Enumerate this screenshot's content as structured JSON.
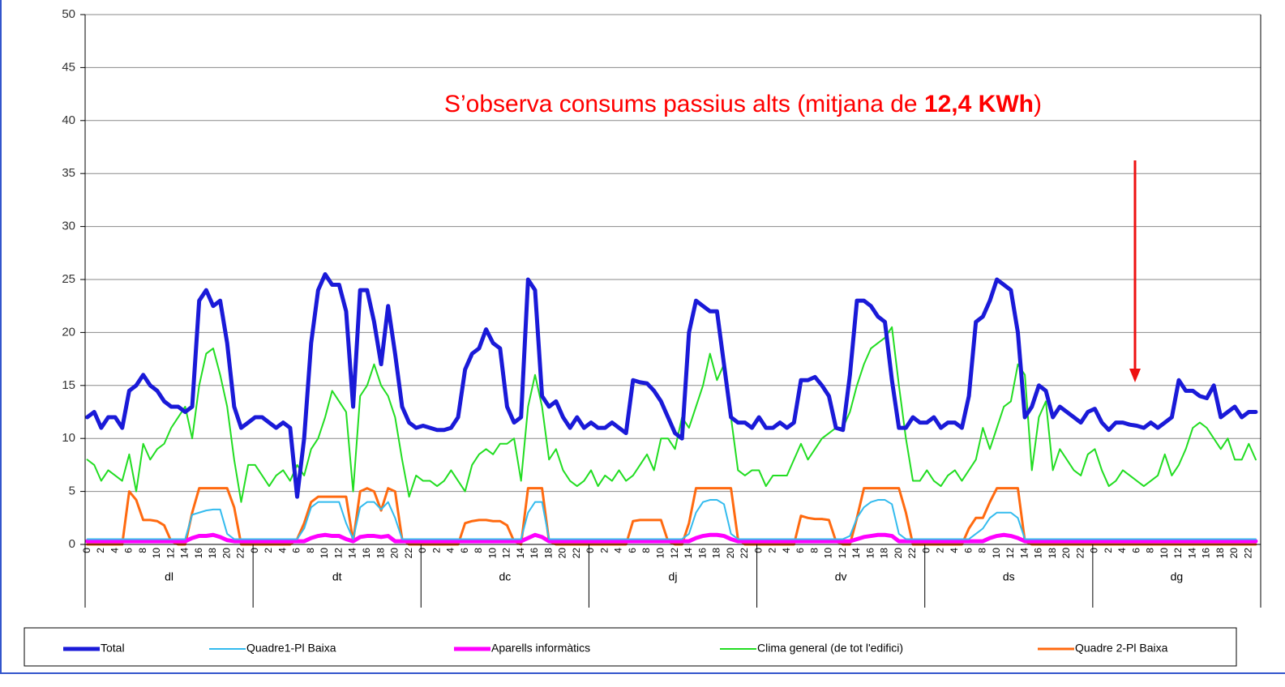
{
  "chart_data": {
    "type": "line",
    "annotation": [
      "S’observa consums passius alts (mitjana de ",
      "12,4 KWh",
      ")"
    ],
    "categories": [
      "0",
      null,
      "2",
      null,
      "4",
      null,
      "6",
      null,
      "8",
      null,
      "10",
      null,
      "12",
      null,
      "14",
      null,
      "16",
      null,
      "18",
      null,
      "20",
      null,
      "22",
      null,
      "0",
      null,
      "2",
      null,
      "4",
      null,
      "6",
      null,
      "8",
      null,
      "10",
      null,
      "12",
      null,
      "14",
      null,
      "16",
      null,
      "18",
      null,
      "20",
      null,
      "22",
      null,
      "0",
      null,
      "2",
      null,
      "4",
      null,
      "6",
      null,
      "8",
      null,
      "10",
      null,
      "12",
      null,
      "14",
      null,
      "16",
      null,
      "18",
      null,
      "20",
      null,
      "22",
      null,
      "0",
      null,
      "2",
      null,
      "4",
      null,
      "6",
      null,
      "8",
      null,
      "10",
      null,
      "12",
      null,
      "14",
      null,
      "16",
      null,
      "18",
      null,
      "20",
      null,
      "22",
      null,
      "0",
      null,
      "2",
      null,
      "4",
      null,
      "6",
      null,
      "8",
      null,
      "10",
      null,
      "12",
      null,
      "14",
      null,
      "16",
      null,
      "18",
      null,
      "20",
      null,
      "22",
      null,
      "0",
      null,
      "2",
      null,
      "4",
      null,
      "6",
      null,
      "8",
      null,
      "10",
      null,
      "12",
      null,
      "14",
      null,
      "16",
      null,
      "18",
      null,
      "20",
      null,
      "22",
      null,
      "0",
      null,
      "2",
      null,
      "4",
      null,
      "6",
      null,
      "8",
      null,
      "10",
      null,
      "12",
      null,
      "14",
      null,
      "16",
      null,
      "18",
      null,
      "20",
      null,
      "22",
      null
    ],
    "groups": [
      "dl",
      "dt",
      "dc",
      "dj",
      "dv",
      "ds",
      "dg"
    ],
    "ylim": [
      0,
      50
    ],
    "yticks": [
      0,
      5,
      10,
      15,
      20,
      25,
      30,
      35,
      40,
      45,
      50
    ],
    "grid": true,
    "legend": "bottom",
    "series": [
      {
        "name": "Total",
        "color": "#1a1ad8",
        "width": 5,
        "values": [
          12,
          12.5,
          11,
          12,
          12,
          11,
          14.5,
          15,
          16,
          15,
          14.5,
          13.5,
          13,
          13,
          12.5,
          13,
          23,
          24,
          22.5,
          23,
          19,
          13,
          11,
          11.5,
          12,
          12,
          11.5,
          11,
          11.5,
          11,
          4.5,
          10,
          19,
          24,
          25.5,
          24.5,
          24.5,
          22,
          13,
          24,
          24,
          21,
          17,
          22.5,
          18,
          13,
          11.5,
          11,
          11.2,
          11,
          10.8,
          10.8,
          11,
          12,
          16.5,
          18,
          18.5,
          20.3,
          19,
          18.5,
          13,
          11.5,
          12,
          25,
          24,
          14,
          13,
          13.5,
          12,
          11,
          12,
          11,
          11.5,
          11,
          11,
          11.5,
          11,
          10.5,
          15.5,
          15.3,
          15.2,
          14.5,
          13.5,
          12,
          10.5,
          10,
          20,
          23,
          22.5,
          22,
          22,
          17,
          12,
          11.5,
          11.5,
          11,
          12,
          11,
          11,
          11.5,
          11,
          11.5,
          15.5,
          15.5,
          15.8,
          15,
          14,
          11,
          10.8,
          16,
          23,
          23,
          22.5,
          21.5,
          21,
          15.5,
          11,
          11,
          12,
          11.5,
          11.5,
          12,
          11,
          11.5,
          11.5,
          11,
          14,
          21,
          21.5,
          23,
          25,
          24.5,
          24,
          20,
          12,
          13,
          15,
          14.5,
          12,
          13,
          12.5,
          12,
          11.5,
          12.5,
          12.8,
          11.5,
          10.8,
          11.5,
          11.5,
          11.3,
          11.2,
          11,
          11.5,
          11,
          11.5,
          12,
          15.5,
          14.5,
          14.5,
          14,
          13.8,
          15,
          12,
          12.5,
          13,
          12,
          12.5,
          12.5
        ]
      },
      {
        "name": "Quadre1-Pl Baixa",
        "color": "#33bbee",
        "width": 2,
        "values": [
          0.5,
          0.5,
          0.5,
          0.5,
          0.5,
          0.5,
          0.5,
          0.5,
          0.5,
          0.5,
          0.5,
          0.5,
          0.5,
          0.5,
          0.5,
          2.8,
          3,
          3.2,
          3.3,
          3.3,
          1,
          0.5,
          0.5,
          0.5,
          0.5,
          0.5,
          0.5,
          0.5,
          0.5,
          0.5,
          0.5,
          1.5,
          3.5,
          4,
          4,
          4,
          4,
          2,
          0.5,
          3.5,
          4,
          4,
          3.3,
          4,
          2.5,
          0.5,
          0.5,
          0.5,
          0.5,
          0.5,
          0.5,
          0.5,
          0.5,
          0.5,
          0.5,
          0.5,
          0.5,
          0.5,
          0.5,
          0.5,
          0.5,
          0.5,
          0.5,
          3,
          4,
          4,
          0.5,
          0.5,
          0.5,
          0.5,
          0.5,
          0.5,
          0.5,
          0.5,
          0.5,
          0.5,
          0.5,
          0.5,
          0.5,
          0.5,
          0.5,
          0.5,
          0.5,
          0.5,
          0.5,
          0.5,
          1,
          3,
          4,
          4.2,
          4.2,
          3.8,
          1,
          0.5,
          0.5,
          0.5,
          0.5,
          0.5,
          0.5,
          0.5,
          0.5,
          0.5,
          0.5,
          0.5,
          0.5,
          0.5,
          0.5,
          0.5,
          0.5,
          0.8,
          2.5,
          3.5,
          4,
          4.2,
          4.2,
          3.8,
          1,
          0.5,
          0.5,
          0.5,
          0.5,
          0.5,
          0.5,
          0.5,
          0.5,
          0.5,
          0.5,
          1,
          1.5,
          2.5,
          3,
          3,
          3,
          2.5,
          0.5,
          0.5,
          0.5,
          0.5,
          0.5,
          0.5,
          0.5,
          0.5,
          0.5,
          0.5,
          0.5,
          0.5,
          0.5,
          0.5,
          0.5,
          0.5,
          0.5,
          0.5,
          0.5,
          0.5,
          0.5,
          0.5,
          0.5,
          0.5,
          0.5,
          0.5,
          0.5,
          0.5,
          0.5,
          0.5,
          0.5,
          0.5,
          0.5,
          0.5
        ]
      },
      {
        "name": "Aparells informàtics",
        "color": "#ff00ff",
        "width": 5,
        "values": [
          0.3,
          0.3,
          0.3,
          0.3,
          0.3,
          0.3,
          0.3,
          0.3,
          0.3,
          0.3,
          0.3,
          0.3,
          0.3,
          0.3,
          0.3,
          0.6,
          0.8,
          0.8,
          0.9,
          0.7,
          0.4,
          0.3,
          0.3,
          0.3,
          0.3,
          0.3,
          0.3,
          0.3,
          0.3,
          0.3,
          0.3,
          0.3,
          0.6,
          0.8,
          0.9,
          0.8,
          0.8,
          0.5,
          0.3,
          0.7,
          0.8,
          0.8,
          0.7,
          0.8,
          0.3,
          0.3,
          0.3,
          0.3,
          0.3,
          0.3,
          0.3,
          0.3,
          0.3,
          0.3,
          0.3,
          0.3,
          0.3,
          0.3,
          0.3,
          0.3,
          0.3,
          0.3,
          0.3,
          0.6,
          0.9,
          0.7,
          0.3,
          0.3,
          0.3,
          0.3,
          0.3,
          0.3,
          0.3,
          0.3,
          0.3,
          0.3,
          0.3,
          0.3,
          0.3,
          0.3,
          0.3,
          0.3,
          0.3,
          0.3,
          0.3,
          0.3,
          0.3,
          0.6,
          0.8,
          0.9,
          0.9,
          0.8,
          0.5,
          0.3,
          0.3,
          0.3,
          0.3,
          0.3,
          0.3,
          0.3,
          0.3,
          0.3,
          0.3,
          0.3,
          0.3,
          0.3,
          0.3,
          0.3,
          0.3,
          0.3,
          0.5,
          0.7,
          0.8,
          0.9,
          0.9,
          0.8,
          0.3,
          0.3,
          0.3,
          0.3,
          0.3,
          0.3,
          0.3,
          0.3,
          0.3,
          0.3,
          0.3,
          0.3,
          0.3,
          0.6,
          0.8,
          0.9,
          0.8,
          0.6,
          0.3,
          0.3,
          0.3,
          0.3,
          0.3,
          0.3,
          0.3,
          0.3,
          0.3,
          0.3,
          0.3,
          0.3,
          0.3,
          0.3,
          0.3,
          0.3,
          0.3,
          0.3,
          0.3,
          0.3,
          0.3,
          0.3,
          0.3,
          0.3,
          0.3,
          0.3,
          0.3,
          0.3,
          0.3,
          0.3,
          0.3,
          0.3,
          0.3,
          0.3
        ]
      },
      {
        "name": "Clima general (de tot l'edifici)",
        "color": "#22dd22",
        "width": 2,
        "values": [
          8,
          7.5,
          6,
          7,
          6.5,
          6,
          8.5,
          5,
          9.5,
          8,
          9,
          9.5,
          11,
          12,
          13,
          10,
          15,
          18,
          18.5,
          16,
          13,
          8,
          4,
          7.5,
          7.5,
          6.5,
          5.5,
          6.5,
          7,
          6,
          7.5,
          6.5,
          9,
          10,
          12,
          14.5,
          13.5,
          12.5,
          5,
          14,
          15,
          17,
          15,
          14,
          12,
          8,
          4.5,
          6.5,
          6,
          6,
          5.5,
          6,
          7,
          6,
          5,
          7.5,
          8.5,
          9,
          8.5,
          9.5,
          9.5,
          10,
          6,
          13,
          16,
          13,
          8,
          9,
          7,
          6,
          5.5,
          6,
          7,
          5.5,
          6.5,
          6,
          7,
          6,
          6.5,
          7.5,
          8.5,
          7,
          10,
          10,
          9,
          12,
          11,
          13,
          15,
          18,
          15.5,
          17,
          12,
          7,
          6.5,
          7,
          7,
          5.5,
          6.5,
          6.5,
          6.5,
          8,
          9.5,
          8,
          9,
          10,
          10.5,
          11,
          11,
          12.5,
          15,
          17,
          18.5,
          19,
          19.5,
          20.5,
          15,
          10,
          6,
          6,
          7,
          6,
          5.5,
          6.5,
          7,
          6,
          7,
          8,
          11,
          9,
          11,
          13,
          13.5,
          17,
          16,
          7,
          12,
          13.5,
          7,
          9,
          8,
          7,
          6.5,
          8.5,
          9,
          7,
          5.5,
          6,
          7,
          6.5,
          6,
          5.5,
          6,
          6.5,
          8.5,
          6.5,
          7.5,
          9,
          11,
          11.5,
          11,
          10,
          9,
          10,
          8,
          8,
          9.5,
          8
        ]
      },
      {
        "name": "Quadre 2-Pl Baixa",
        "color": "#ff6a10",
        "width": 3,
        "values": [
          0,
          0,
          0,
          0,
          0,
          0,
          5,
          4.2,
          2.3,
          2.3,
          2.2,
          1.8,
          0.3,
          0,
          0,
          3,
          5.3,
          5.3,
          5.3,
          5.3,
          5.3,
          3.5,
          0,
          0,
          0,
          0,
          0,
          0,
          0,
          0,
          0.5,
          2,
          4,
          4.5,
          4.5,
          4.5,
          4.5,
          4.5,
          0.3,
          5,
          5.3,
          5,
          3.2,
          5.3,
          5,
          0.5,
          0,
          0,
          0,
          0,
          0,
          0,
          0,
          0,
          2,
          2.2,
          2.3,
          2.3,
          2.2,
          2.2,
          1.8,
          0.3,
          0,
          5.3,
          5.3,
          5.3,
          0.3,
          0,
          0,
          0,
          0,
          0,
          0,
          0,
          0,
          0,
          0,
          0,
          2.2,
          2.3,
          2.3,
          2.3,
          2.3,
          0.3,
          0,
          0,
          2,
          5.3,
          5.3,
          5.3,
          5.3,
          5.3,
          5.3,
          0.5,
          0,
          0,
          0,
          0,
          0,
          0,
          0,
          0,
          2.7,
          2.5,
          2.4,
          2.4,
          2.3,
          0.3,
          0,
          0,
          2.5,
          5.3,
          5.3,
          5.3,
          5.3,
          5.3,
          5.3,
          3,
          0,
          0,
          0,
          0,
          0,
          0,
          0,
          0,
          1.5,
          2.5,
          2.5,
          4,
          5.3,
          5.3,
          5.3,
          5.3,
          0.3,
          0,
          0,
          0,
          0,
          0,
          0,
          0,
          0,
          0,
          0,
          0,
          0,
          0,
          0,
          0,
          0,
          0,
          0,
          0,
          0,
          0,
          0,
          0,
          0,
          0,
          0,
          0,
          0,
          0,
          0,
          0,
          0,
          0
        ]
      }
    ]
  }
}
